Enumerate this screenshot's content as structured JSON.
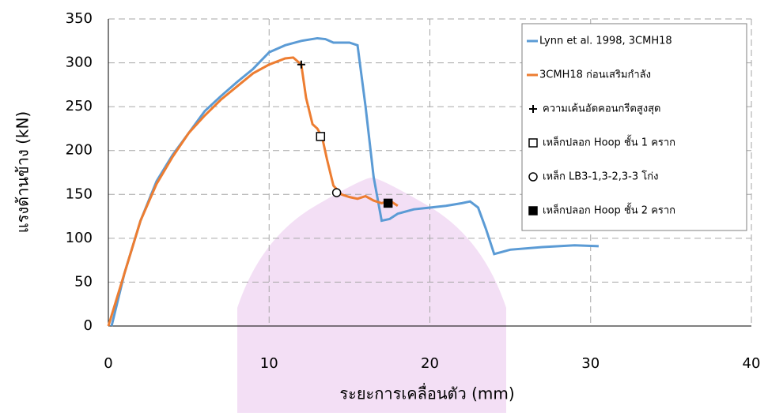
{
  "chart_data": {
    "type": "line",
    "x_label": "ระยะการเคลื่อนตัว (mm)",
    "y_label": "แรงด้านข้าง (kN)",
    "xlim": [
      0,
      40
    ],
    "xticks": [
      0,
      10,
      20,
      30,
      40
    ],
    "ylim": [
      0,
      350
    ],
    "yticks": [
      0,
      50,
      100,
      150,
      200,
      250,
      300,
      350
    ],
    "grid": true,
    "legend": "upper right",
    "series": [
      {
        "name": "Lynn et al. 1998, 3CMH18",
        "color": "#5b9bd5",
        "x": [
          0.2,
          1,
          2,
          3,
          4,
          5,
          6,
          7,
          8,
          9,
          10,
          11,
          12,
          13,
          13.5,
          14,
          15,
          15.5,
          16,
          16.5,
          17,
          17.5,
          18,
          19,
          20,
          21,
          22,
          22.5,
          23,
          23.5,
          24,
          25,
          27,
          29,
          30.5
        ],
        "values": [
          0,
          60,
          120,
          165,
          195,
          220,
          245,
          262,
          278,
          293,
          312,
          320,
          325,
          328,
          327,
          323,
          323,
          320,
          250,
          170,
          120,
          122,
          128,
          133,
          135,
          137,
          140,
          142,
          135,
          110,
          82,
          87,
          90,
          92,
          91
        ]
      },
      {
        "name": "3CMH18 ก่อนเสริมกำลัง",
        "color": "#ed7d31",
        "x": [
          0,
          1,
          2,
          3,
          4,
          5,
          6,
          7,
          8,
          9,
          10,
          11,
          11.5,
          12,
          12.3,
          12.7,
          13,
          13.3,
          13.6,
          14,
          14.5,
          15,
          15.5,
          16,
          16.5,
          17,
          17.5,
          18
        ],
        "values": [
          0,
          60,
          120,
          162,
          193,
          220,
          240,
          258,
          273,
          288,
          298,
          305,
          306,
          298,
          260,
          230,
          225,
          215,
          190,
          160,
          150,
          147,
          145,
          148,
          143,
          140,
          143,
          137
        ]
      }
    ],
    "markers": [
      {
        "name": "ความเค้นอัดคอนกรีตสูงสุด",
        "symbol": "plus",
        "x": 12,
        "y": 298
      },
      {
        "name": "เหล็กปลอก Hoop ชั้น 1 คราก",
        "symbol": "open-square",
        "x": 13.2,
        "y": 216
      },
      {
        "name": "เหล็ก LB3-1,3-2,3-3 โก่ง",
        "symbol": "open-circle",
        "x": 14.2,
        "y": 152
      },
      {
        "name": "เหล็กปลอก Hoop ชั้น 2 คราก",
        "symbol": "filled-square",
        "x": 17.4,
        "y": 140
      }
    ]
  }
}
